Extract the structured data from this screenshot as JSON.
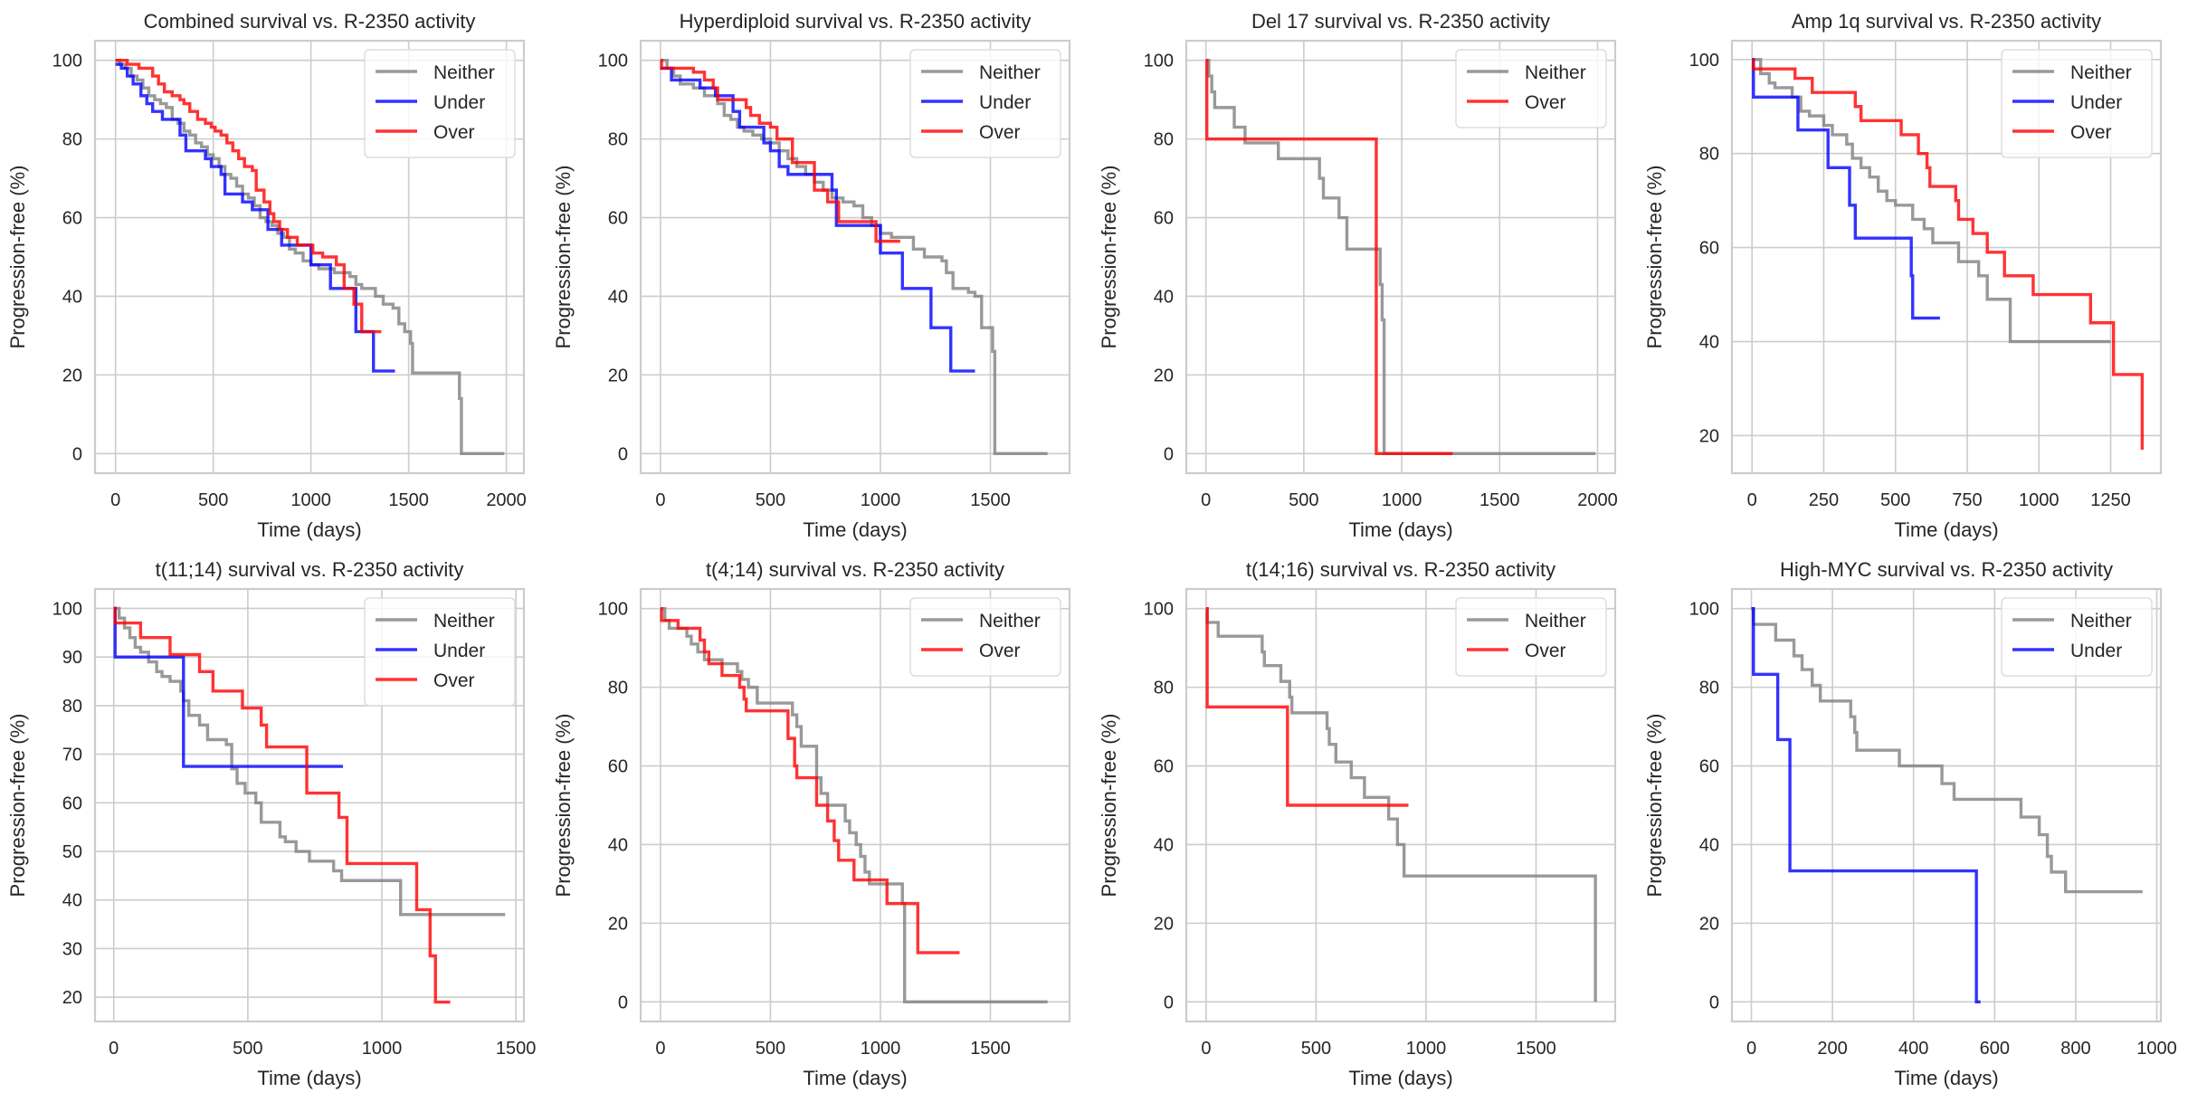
{
  "colors": {
    "Neither": "#808080",
    "Under": "#0000ff",
    "Over": "#ff0000",
    "series_opacity": 0.8
  },
  "chart_data": [
    {
      "type": "line",
      "step": true,
      "title": "Combined survival vs. R-2350 activity",
      "xlabel": "Time (days)",
      "ylabel": "Progression-free (%)",
      "xlim": [
        -105,
        2090
      ],
      "ylim": [
        -5,
        105
      ],
      "xticks": [
        0,
        500,
        1000,
        1500,
        2000
      ],
      "yticks": [
        0,
        20,
        40,
        60,
        80,
        100
      ],
      "grid": true,
      "legend": "top-right",
      "series": [
        {
          "name": "Neither",
          "x": [
            0,
            20,
            50,
            80,
            110,
            140,
            170,
            200,
            230,
            260,
            290,
            320,
            350,
            380,
            410,
            440,
            470,
            500,
            530,
            560,
            590,
            620,
            650,
            680,
            710,
            740,
            770,
            800,
            830,
            860,
            890,
            920,
            960,
            1000,
            1040,
            1080,
            1120,
            1160,
            1200,
            1230,
            1260,
            1290,
            1330,
            1370,
            1400,
            1420,
            1450,
            1480,
            1510,
            1520,
            1760,
            1770,
            1990
          ],
          "y": [
            100,
            99,
            98,
            96,
            95,
            93,
            91,
            90,
            89,
            88,
            85,
            84,
            82,
            81,
            79,
            78,
            76,
            75,
            73,
            71,
            70,
            68,
            66,
            65,
            63,
            60,
            59,
            58,
            56,
            55,
            52,
            51,
            49,
            48,
            47,
            47,
            46,
            46,
            45,
            43,
            42,
            42,
            40,
            38,
            38,
            37,
            33,
            31,
            28,
            20.5,
            14,
            0,
            0
          ]
        },
        {
          "name": "Under",
          "x": [
            0,
            30,
            60,
            90,
            130,
            160,
            190,
            240,
            330,
            360,
            460,
            490,
            540,
            560,
            650,
            700,
            780,
            850,
            1000,
            1100,
            1230,
            1320,
            1430
          ],
          "y": [
            99,
            98,
            96,
            94,
            91,
            89,
            87,
            85,
            81,
            77,
            75,
            73,
            71,
            66,
            64,
            62,
            57,
            53,
            48,
            42,
            31,
            21,
            21
          ]
        },
        {
          "name": "Over",
          "x": [
            0,
            60,
            120,
            190,
            220,
            250,
            290,
            330,
            350,
            380,
            420,
            460,
            490,
            510,
            540,
            570,
            600,
            630,
            660,
            700,
            720,
            760,
            790,
            810,
            840,
            880,
            930,
            1010,
            1060,
            1130,
            1170,
            1220,
            1260,
            1360
          ],
          "y": [
            100,
            99,
            98,
            96,
            94,
            92,
            91,
            90,
            89,
            87,
            85,
            84,
            83,
            82,
            81,
            79,
            77,
            75,
            73,
            72,
            67,
            64,
            61,
            59,
            57,
            55,
            53,
            51,
            50,
            48,
            42,
            38,
            31,
            31
          ]
        }
      ]
    },
    {
      "type": "line",
      "step": true,
      "title": "Hyperdiploid survival vs. R-2350 activity",
      "xlabel": "Time (days)",
      "ylabel": "Progression-free (%)",
      "xlim": [
        -90,
        1860
      ],
      "ylim": [
        -5,
        105
      ],
      "xticks": [
        0,
        500,
        1000,
        1500
      ],
      "yticks": [
        0,
        20,
        40,
        60,
        80,
        100
      ],
      "grid": true,
      "legend": "top-right",
      "series": [
        {
          "name": "Neither",
          "x": [
            0,
            30,
            60,
            90,
            150,
            200,
            260,
            290,
            320,
            350,
            380,
            420,
            460,
            500,
            540,
            580,
            620,
            660,
            700,
            740,
            780,
            830,
            880,
            920,
            960,
            1000,
            1050,
            1150,
            1200,
            1280,
            1300,
            1330,
            1400,
            1430,
            1460,
            1510,
            1520,
            1760
          ],
          "y": [
            100,
            98,
            96,
            94,
            93,
            91,
            89,
            86,
            85,
            83,
            82,
            81,
            80,
            79,
            77,
            75,
            73,
            71,
            69,
            67,
            65,
            64,
            63,
            60,
            58,
            56,
            55,
            52,
            50,
            49,
            46,
            42,
            41,
            40,
            32,
            26,
            0,
            0
          ]
        },
        {
          "name": "Under",
          "x": [
            0,
            50,
            180,
            250,
            330,
            360,
            470,
            500,
            540,
            580,
            700,
            780,
            800,
            1000,
            1100,
            1230,
            1320,
            1430
          ],
          "y": [
            98,
            95,
            93,
            91,
            87,
            83,
            79,
            77,
            73,
            71,
            71,
            67,
            58,
            51,
            42,
            32,
            21,
            21
          ]
        },
        {
          "name": "Over",
          "x": [
            0,
            5,
            150,
            200,
            240,
            260,
            390,
            410,
            450,
            500,
            530,
            600,
            700,
            760,
            810,
            980,
            1090
          ],
          "y": [
            100,
            98,
            97,
            95,
            93,
            90,
            88,
            86,
            84,
            83,
            80,
            74,
            67,
            64,
            59,
            54,
            54
          ]
        }
      ]
    },
    {
      "type": "line",
      "step": true,
      "title": "Del 17 survival vs. R-2350 activity",
      "xlabel": "Time (days)",
      "ylabel": "Progression-free (%)",
      "xlim": [
        -100,
        2090
      ],
      "ylim": [
        -5,
        105
      ],
      "xticks": [
        0,
        500,
        1000,
        1500,
        2000
      ],
      "yticks": [
        0,
        20,
        40,
        60,
        80,
        100
      ],
      "grid": true,
      "legend": "top-right",
      "series": [
        {
          "name": "Neither",
          "x": [
            0,
            15,
            30,
            45,
            145,
            200,
            370,
            580,
            600,
            680,
            720,
            890,
            900,
            910,
            1990
          ],
          "y": [
            100,
            96,
            92,
            88,
            83,
            79,
            75,
            70,
            65,
            60,
            52,
            43,
            34,
            0,
            0
          ]
        },
        {
          "name": "Over",
          "x": [
            0,
            5,
            870,
            1260
          ],
          "y": [
            100,
            80,
            0,
            0
          ]
        }
      ]
    },
    {
      "type": "line",
      "step": true,
      "title": "Amp 1q survival vs. R-2350 activity",
      "xlabel": "Time (days)",
      "ylabel": "Progression-free (%)",
      "xlim": [
        -70,
        1425
      ],
      "ylim": [
        12,
        104
      ],
      "xticks": [
        0,
        250,
        500,
        750,
        1000,
        1250
      ],
      "yticks": [
        20,
        40,
        60,
        80,
        100
      ],
      "grid": true,
      "legend": "top-right",
      "series": [
        {
          "name": "Neither",
          "x": [
            0,
            30,
            60,
            80,
            140,
            170,
            200,
            250,
            280,
            330,
            350,
            380,
            410,
            440,
            470,
            500,
            560,
            600,
            630,
            720,
            790,
            820,
            900,
            1250
          ],
          "y": [
            100,
            97,
            95,
            94,
            92,
            89,
            88,
            86,
            84,
            82,
            79,
            77,
            75,
            72,
            70,
            69,
            66,
            64,
            61,
            57,
            54,
            49,
            40,
            40
          ]
        },
        {
          "name": "Under",
          "x": [
            0,
            5,
            160,
            265,
            340,
            360,
            555,
            560,
            655
          ],
          "y": [
            100,
            92,
            85,
            77,
            69,
            62,
            54,
            45,
            45
          ]
        },
        {
          "name": "Over",
          "x": [
            0,
            5,
            150,
            210,
            360,
            380,
            520,
            580,
            610,
            620,
            710,
            720,
            770,
            820,
            880,
            980,
            1180,
            1260,
            1360
          ],
          "y": [
            100,
            98,
            96,
            93,
            90,
            87,
            84,
            80,
            77,
            73,
            70,
            66,
            63,
            59,
            54,
            50,
            44,
            33,
            17
          ]
        }
      ]
    },
    {
      "type": "line",
      "step": true,
      "title": "t(11;14) survival vs. R-2350 activity",
      "xlabel": "Time (days)",
      "ylabel": "Progression-free (%)",
      "xlim": [
        -70,
        1530
      ],
      "ylim": [
        15,
        104
      ],
      "xticks": [
        0,
        500,
        1000,
        1500
      ],
      "yticks": [
        20,
        30,
        40,
        50,
        60,
        70,
        80,
        90,
        100
      ],
      "grid": true,
      "legend": "top-right",
      "series": [
        {
          "name": "Neither",
          "x": [
            0,
            20,
            40,
            60,
            80,
            100,
            130,
            160,
            180,
            210,
            250,
            260,
            280,
            320,
            350,
            420,
            440,
            460,
            490,
            530,
            550,
            620,
            640,
            680,
            730,
            820,
            850,
            1070,
            1460
          ],
          "y": [
            100,
            98,
            96,
            94,
            92,
            91,
            89,
            87,
            86,
            85,
            83,
            81,
            78,
            76,
            73,
            72,
            67,
            64,
            62,
            60,
            56,
            53,
            52,
            50,
            48,
            46,
            44,
            37,
            37
          ]
        },
        {
          "name": "Under",
          "x": [
            0,
            5,
            260,
            855
          ],
          "y": [
            100,
            90,
            67.5,
            67.5
          ]
        },
        {
          "name": "Over",
          "x": [
            0,
            5,
            100,
            210,
            320,
            370,
            480,
            550,
            570,
            720,
            840,
            870,
            1130,
            1180,
            1200,
            1255
          ],
          "y": [
            100,
            97,
            94,
            90.5,
            87,
            83,
            79.5,
            76,
            71.5,
            62,
            57,
            47.5,
            38,
            28.5,
            19,
            19
          ]
        }
      ]
    },
    {
      "type": "line",
      "step": true,
      "title": "t(4;14) survival vs. R-2350 activity",
      "xlabel": "Time (days)",
      "ylabel": "Progression-free (%)",
      "xlim": [
        -90,
        1860
      ],
      "ylim": [
        -5,
        105
      ],
      "xticks": [
        0,
        500,
        1000,
        1500
      ],
      "yticks": [
        0,
        20,
        40,
        60,
        80,
        100
      ],
      "grid": true,
      "legend": "top-right",
      "series": [
        {
          "name": "Neither",
          "x": [
            0,
            20,
            40,
            120,
            140,
            170,
            200,
            280,
            350,
            370,
            400,
            440,
            600,
            620,
            640,
            710,
            730,
            760,
            840,
            860,
            890,
            910,
            930,
            950,
            1100,
            1110,
            1760
          ],
          "y": [
            100,
            97,
            95,
            93,
            91,
            89,
            87,
            86,
            84,
            82,
            80,
            76,
            73,
            70,
            65,
            57,
            53,
            50,
            46,
            43,
            40,
            37,
            33,
            30,
            25,
            0,
            0
          ]
        },
        {
          "name": "Over",
          "x": [
            0,
            5,
            80,
            180,
            200,
            220,
            280,
            360,
            380,
            390,
            580,
            610,
            620,
            710,
            760,
            790,
            810,
            880,
            1030,
            1170,
            1360
          ],
          "y": [
            100,
            97,
            95,
            92,
            89,
            86,
            83,
            80,
            77,
            74,
            67,
            60,
            57,
            50,
            46,
            41,
            36,
            31,
            25,
            12.5,
            12.5
          ]
        }
      ]
    },
    {
      "type": "line",
      "step": true,
      "title": "t(14;16) survival vs. R-2350 activity",
      "xlabel": "Time (days)",
      "ylabel": "Progression-free (%)",
      "xlim": [
        -90,
        1860
      ],
      "ylim": [
        -5,
        105
      ],
      "xticks": [
        0,
        500,
        1000,
        1500
      ],
      "yticks": [
        0,
        20,
        40,
        60,
        80,
        100
      ],
      "grid": true,
      "legend": "top-right",
      "series": [
        {
          "name": "Neither",
          "x": [
            0,
            5,
            55,
            255,
            265,
            340,
            380,
            390,
            550,
            560,
            590,
            660,
            720,
            830,
            870,
            900,
            1770
          ],
          "y": [
            100,
            96.5,
            93,
            89,
            85.5,
            81.5,
            77.5,
            73.5,
            69.5,
            65.5,
            61,
            57,
            52,
            46.5,
            40,
            32,
            0
          ]
        },
        {
          "name": "Over",
          "x": [
            0,
            5,
            370,
            920
          ],
          "y": [
            100,
            75,
            50,
            50
          ]
        }
      ]
    },
    {
      "type": "line",
      "step": true,
      "title": "High-MYC survival vs. R-2350 activity",
      "xlabel": "Time (days)",
      "ylabel": "Progression-free (%)",
      "xlim": [
        -48,
        1010
      ],
      "ylim": [
        -5,
        105
      ],
      "xticks": [
        0,
        200,
        400,
        600,
        800,
        1000
      ],
      "yticks": [
        0,
        20,
        40,
        60,
        80,
        100
      ],
      "grid": true,
      "legend": "top-right",
      "series": [
        {
          "name": "Neither",
          "x": [
            0,
            5,
            60,
            105,
            125,
            150,
            170,
            245,
            255,
            260,
            365,
            470,
            500,
            665,
            710,
            730,
            740,
            775,
            965
          ],
          "y": [
            100,
            96,
            92,
            88,
            84.5,
            80.5,
            76.5,
            72.5,
            68.5,
            64,
            60,
            55.5,
            51.5,
            47,
            42.5,
            37,
            33,
            28,
            28
          ]
        },
        {
          "name": "Under",
          "x": [
            0,
            5,
            65,
            95,
            555,
            565
          ],
          "y": [
            100,
            83.3,
            66.7,
            33.3,
            0,
            0
          ]
        }
      ]
    }
  ]
}
